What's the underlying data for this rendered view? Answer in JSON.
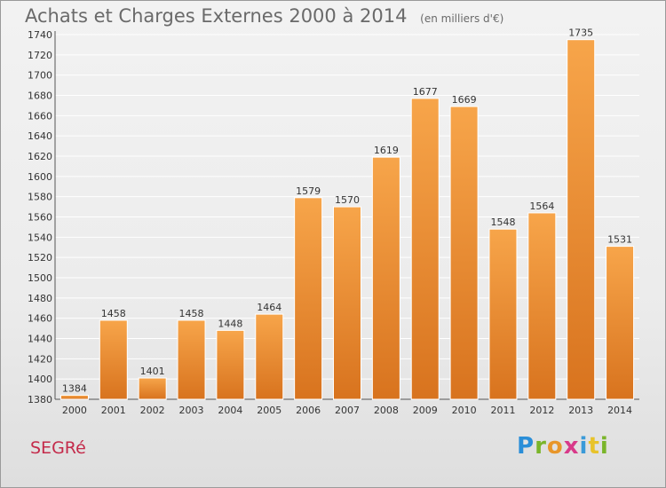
{
  "header": {
    "title": "Achats et Charges Externes 2000 à 2014",
    "unit": "(en milliers d'€)"
  },
  "footer": {
    "commune": "SEGRé",
    "logo": {
      "letters": [
        "P",
        "r",
        "o",
        "x",
        "i",
        "t",
        "i"
      ],
      "colors": [
        "#2a8ed8",
        "#7ab52a",
        "#e8962a",
        "#d83a8a",
        "#3a9ad8",
        "#e8c32a",
        "#7ab52a"
      ]
    }
  },
  "colors": {
    "bar_top": "#f7a54a",
    "bar_bottom": "#d8731e",
    "grid": "#ffffff",
    "axis_text": "#333333"
  },
  "chart_data": {
    "type": "bar",
    "title": "Achats et Charges Externes 2000 à 2014",
    "subtitle": "(en milliers d'€)",
    "categories": [
      "2000",
      "2001",
      "2002",
      "2003",
      "2004",
      "2005",
      "2006",
      "2007",
      "2008",
      "2009",
      "2010",
      "2011",
      "2012",
      "2013",
      "2014"
    ],
    "values": [
      1384,
      1458,
      1401,
      1458,
      1448,
      1464,
      1579,
      1570,
      1619,
      1677,
      1669,
      1548,
      1564,
      1735,
      1531
    ],
    "ylim": [
      1380,
      1740
    ],
    "yticks": [
      1380,
      1400,
      1420,
      1440,
      1460,
      1480,
      1500,
      1520,
      1540,
      1560,
      1580,
      1600,
      1620,
      1640,
      1660,
      1680,
      1700,
      1720,
      1740
    ],
    "grid": true,
    "xlabel": "",
    "ylabel": ""
  }
}
